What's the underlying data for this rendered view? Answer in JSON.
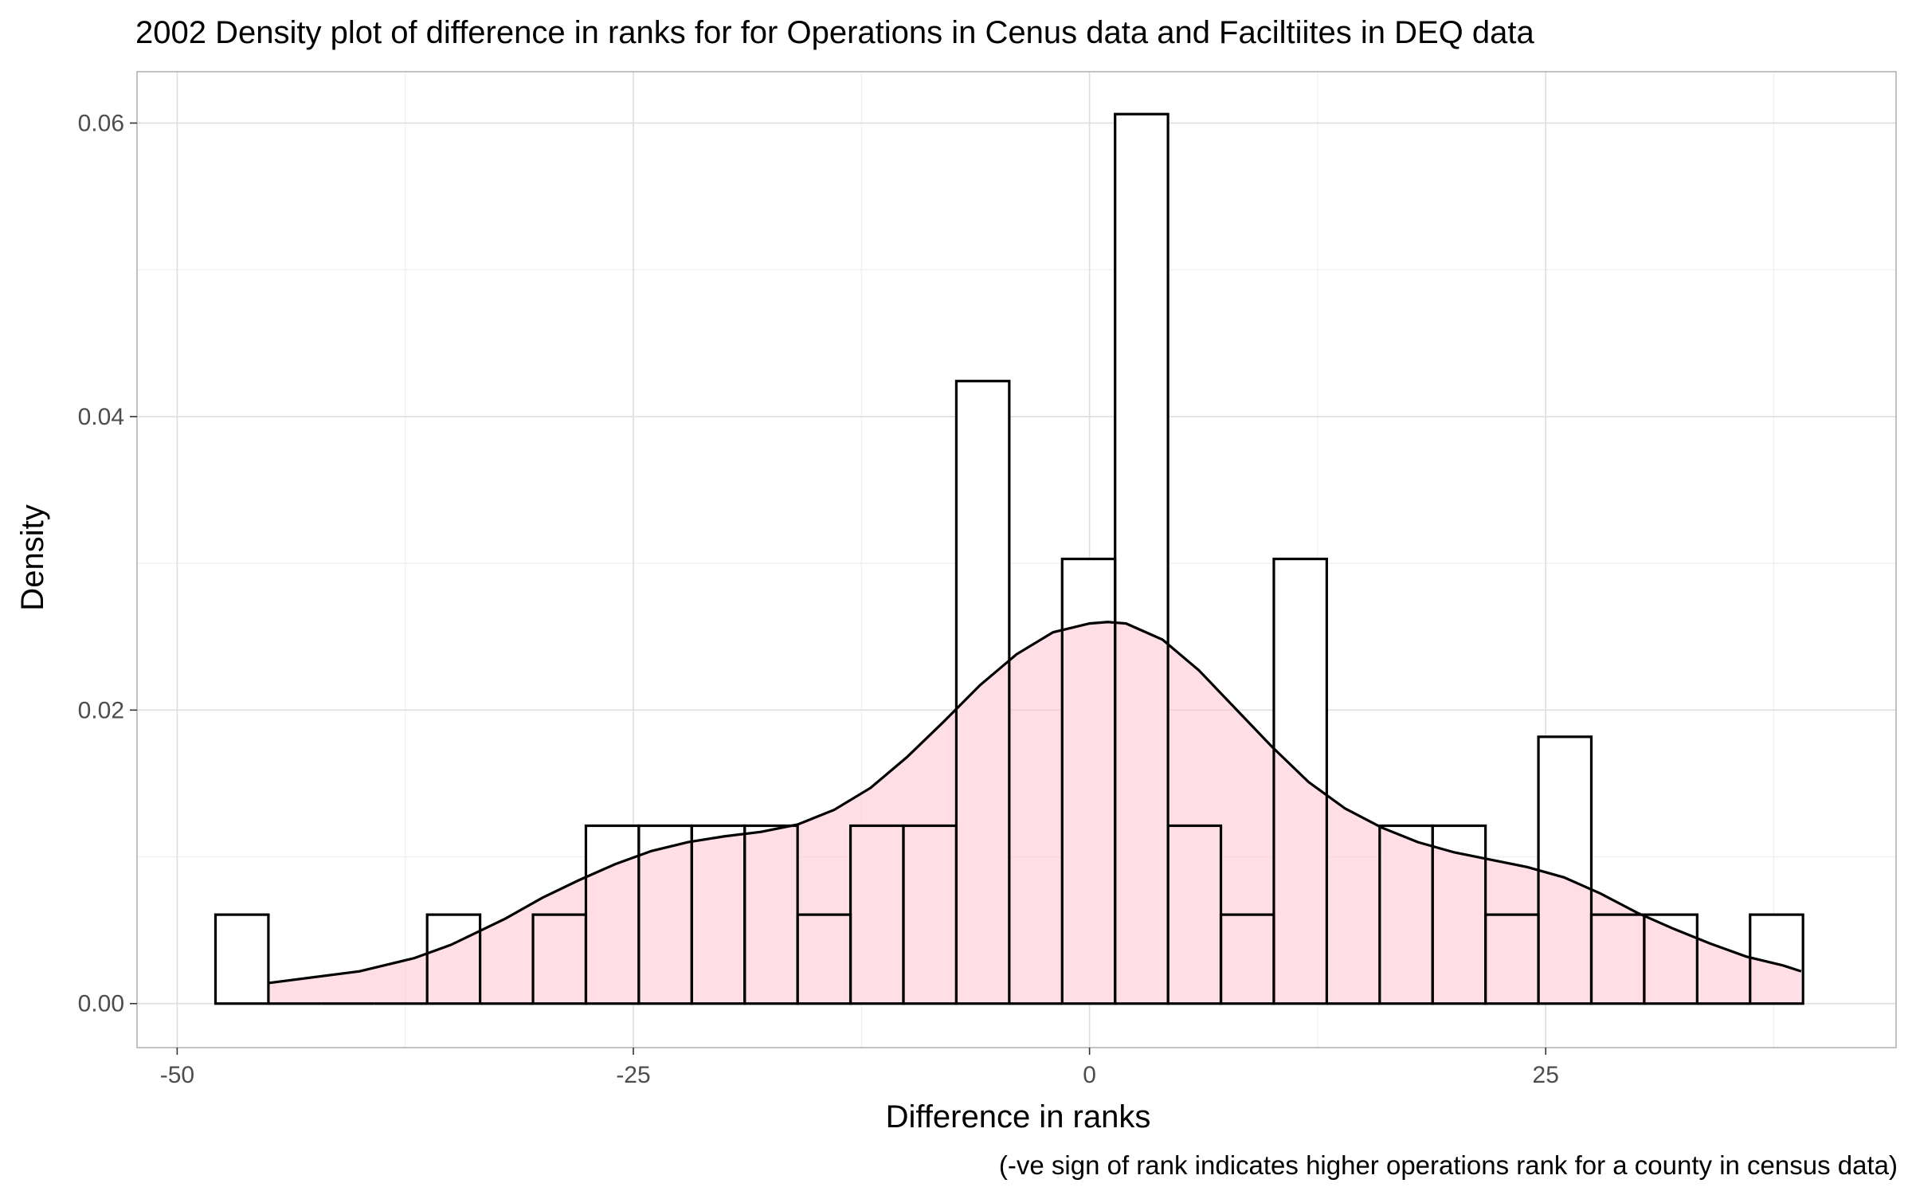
{
  "chart_data": {
    "type": "histogram",
    "title": "2002 Density plot of difference in ranks for for Operations in Cenus data and Faciltiites in DEQ data",
    "xlabel": "Difference in ranks",
    "ylabel": "Density",
    "caption": "(-ve sign of rank indicates higher operations rank for a county in census data)",
    "xlim": [
      -52.2,
      44.2
    ],
    "ylim": [
      -0.003,
      0.0635
    ],
    "x_ticks": [
      -50,
      -25,
      0,
      25
    ],
    "x_tick_labels": [
      "-50",
      "-25",
      "0",
      "25"
    ],
    "y_ticks": [
      0,
      0.02,
      0.04,
      0.06
    ],
    "y_tick_labels": [
      "0.00",
      "0.02",
      "0.04",
      "0.06"
    ],
    "grid": true,
    "bins": {
      "bin_width": 2.9,
      "starts": [
        -47.9,
        -45.0,
        -42.1,
        -39.2,
        -36.3,
        -33.4,
        -30.5,
        -27.6,
        -24.7,
        -21.8,
        -18.9,
        -16.0,
        -13.1,
        -10.2,
        -7.3,
        -4.4,
        -1.5,
        1.4,
        4.3,
        7.2,
        10.1,
        13.0,
        15.9,
        18.8,
        21.7,
        24.6,
        27.5,
        30.4,
        33.3,
        36.2
      ],
      "density": [
        0.00606,
        0,
        0,
        0,
        0.00606,
        0,
        0.00606,
        0.01212,
        0.01212,
        0.01212,
        0.01212,
        0.00606,
        0.01212,
        0.01212,
        0.04242,
        0,
        0.0303,
        0.06061,
        0.01212,
        0.00606,
        0.0303,
        0,
        0.01212,
        0.01212,
        0.00606,
        0.01818,
        0.00606,
        0.00606,
        0,
        0.00606
      ]
    },
    "density_curve": {
      "x": [
        -45,
        -40,
        -37,
        -35,
        -32,
        -30,
        -28,
        -26,
        -24,
        -22,
        -20,
        -18,
        -16,
        -14,
        -12,
        -10,
        -8,
        -6,
        -4,
        -2,
        0,
        1,
        2,
        4,
        6,
        8,
        10,
        12,
        14,
        16,
        18,
        20,
        22,
        24,
        26,
        28,
        30,
        32,
        34,
        36,
        38,
        39
      ],
      "y": [
        0.0014,
        0.0022,
        0.0031,
        0.004,
        0.0058,
        0.0072,
        0.0084,
        0.0095,
        0.0104,
        0.011,
        0.0114,
        0.0117,
        0.0122,
        0.0132,
        0.0147,
        0.0168,
        0.0192,
        0.0217,
        0.0238,
        0.0253,
        0.0259,
        0.026,
        0.0259,
        0.0248,
        0.0227,
        0.0201,
        0.0175,
        0.0151,
        0.0133,
        0.012,
        0.011,
        0.0103,
        0.0098,
        0.0093,
        0.0086,
        0.0075,
        0.0062,
        0.0051,
        0.0041,
        0.0032,
        0.0026,
        0.0022
      ]
    },
    "colors": {
      "background": "#ffffff",
      "bar_fill": "#ffffff",
      "bar_outline": "#000000",
      "density_fill": "#ffc0cb",
      "density_fill_opacity": 0.5,
      "density_line": "#000000"
    }
  }
}
